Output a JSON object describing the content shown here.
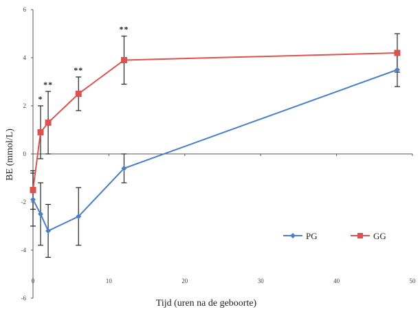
{
  "chart_data": {
    "type": "line",
    "title": "",
    "xlabel": "Tijd (uren na de geboorte)",
    "ylabel": "BE (mmol/L)",
    "xlim": [
      0,
      50
    ],
    "ylim": [
      -6,
      6
    ],
    "x_ticks": [
      "0",
      "10",
      "20",
      "30",
      "40",
      "50"
    ],
    "y_ticks": [
      "-6",
      "-4",
      "-2",
      "0",
      "2",
      "4",
      "6"
    ],
    "grid": false,
    "legend_position": "bottom-right",
    "series": [
      {
        "name": "PG",
        "color": "#4a7fc6",
        "marker": "diamond",
        "x": [
          0,
          1,
          2,
          6,
          12,
          48
        ],
        "y": [
          -1.9,
          -2.5,
          -3.2,
          -2.6,
          -0.6,
          3.5
        ],
        "err": [
          1.1,
          1.3,
          1.1,
          1.2,
          0.6,
          0.7
        ]
      },
      {
        "name": "GG",
        "color": "#d9534f",
        "marker": "square",
        "x": [
          0,
          1,
          2,
          6,
          12,
          48
        ],
        "y": [
          -1.5,
          0.9,
          1.3,
          2.5,
          3.9,
          4.2
        ],
        "err": [
          0.8,
          1.1,
          1.3,
          0.7,
          1.0,
          0.8
        ]
      }
    ],
    "annotations": [
      {
        "text": "*",
        "x": 1
      },
      {
        "text": "**",
        "x": 2
      },
      {
        "text": "**",
        "x": 6
      },
      {
        "text": "**",
        "x": 12
      }
    ]
  }
}
